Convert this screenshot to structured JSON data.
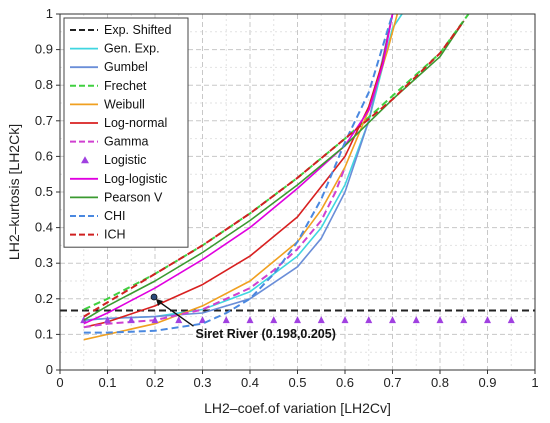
{
  "chart_data": {
    "type": "line",
    "title": "",
    "xlabel": "LH2–coef.of variation [LH2Cv]",
    "ylabel": "LH2–kurtosis [LH2Ck]",
    "xlim": [
      0,
      1
    ],
    "ylim": [
      0,
      1
    ],
    "xticks": [
      "0",
      "0.1",
      "0.2",
      "0.3",
      "0.4",
      "0.5",
      "0.6",
      "0.7",
      "0.8",
      "0.9",
      "1"
    ],
    "yticks": [
      "0",
      "0.1",
      "0.2",
      "0.3",
      "0.4",
      "0.5",
      "0.6",
      "0.7",
      "0.8",
      "0.9",
      "1"
    ],
    "grid": true,
    "legend_position": "top-left",
    "series": [
      {
        "name": "Exp. Shifted",
        "color": "#222222",
        "dash": "dashed",
        "style": "line",
        "points": [
          [
            0,
            0.167
          ],
          [
            1,
            0.167
          ]
        ]
      },
      {
        "name": "Gen. Exp.",
        "color": "#3fd6e0",
        "dash": "solid",
        "style": "line",
        "points": [
          [
            0.05,
            0.14
          ],
          [
            0.1,
            0.145
          ],
          [
            0.2,
            0.15
          ],
          [
            0.3,
            0.17
          ],
          [
            0.4,
            0.22
          ],
          [
            0.5,
            0.32
          ],
          [
            0.55,
            0.4
          ],
          [
            0.6,
            0.52
          ],
          [
            0.65,
            0.7
          ],
          [
            0.7,
            0.96
          ],
          [
            0.72,
            1.0
          ]
        ]
      },
      {
        "name": "Gumbel",
        "color": "#6a8ed8",
        "dash": "solid",
        "style": "line",
        "points": [
          [
            0.05,
            0.14
          ],
          [
            0.1,
            0.145
          ],
          [
            0.2,
            0.15
          ],
          [
            0.3,
            0.16
          ],
          [
            0.4,
            0.2
          ],
          [
            0.5,
            0.29
          ],
          [
            0.55,
            0.37
          ],
          [
            0.6,
            0.5
          ],
          [
            0.65,
            0.7
          ],
          [
            0.7,
            1.0
          ]
        ]
      },
      {
        "name": "Frechet",
        "color": "#40d040",
        "dash": "dashed",
        "style": "line",
        "points": [
          [
            0.05,
            0.17
          ],
          [
            0.1,
            0.2
          ],
          [
            0.2,
            0.27
          ],
          [
            0.3,
            0.35
          ],
          [
            0.4,
            0.44
          ],
          [
            0.5,
            0.54
          ],
          [
            0.6,
            0.65
          ],
          [
            0.7,
            0.77
          ],
          [
            0.8,
            0.89
          ],
          [
            0.86,
            1.0
          ]
        ]
      },
      {
        "name": "Weibull",
        "color": "#f0a020",
        "dash": "solid",
        "style": "line",
        "points": [
          [
            0.05,
            0.085
          ],
          [
            0.1,
            0.1
          ],
          [
            0.2,
            0.13
          ],
          [
            0.3,
            0.18
          ],
          [
            0.4,
            0.25
          ],
          [
            0.5,
            0.36
          ],
          [
            0.55,
            0.45
          ],
          [
            0.6,
            0.57
          ],
          [
            0.65,
            0.73
          ],
          [
            0.69,
            0.9
          ],
          [
            0.71,
            1.0
          ]
        ]
      },
      {
        "name": "Log-normal",
        "color": "#d82020",
        "dash": "solid",
        "style": "line",
        "points": [
          [
            0.05,
            0.12
          ],
          [
            0.1,
            0.135
          ],
          [
            0.2,
            0.18
          ],
          [
            0.3,
            0.24
          ],
          [
            0.4,
            0.32
          ],
          [
            0.5,
            0.43
          ],
          [
            0.6,
            0.6
          ],
          [
            0.65,
            0.74
          ],
          [
            0.68,
            0.87
          ],
          [
            0.7,
            1.0
          ]
        ]
      },
      {
        "name": "Gamma",
        "color": "#d040d0",
        "dash": "dashed",
        "style": "line",
        "points": [
          [
            0.05,
            0.12
          ],
          [
            0.1,
            0.13
          ],
          [
            0.2,
            0.14
          ],
          [
            0.3,
            0.17
          ],
          [
            0.4,
            0.23
          ],
          [
            0.45,
            0.28
          ],
          [
            0.5,
            0.34
          ],
          [
            0.55,
            0.42
          ],
          [
            0.58,
            0.5
          ],
          [
            0.6,
            0.57
          ]
        ]
      },
      {
        "name": "Logistic",
        "color": "#a040e0",
        "dash": "none",
        "style": "markers",
        "points": [
          [
            0.05,
            0.14
          ],
          [
            0.1,
            0.14
          ],
          [
            0.15,
            0.14
          ],
          [
            0.2,
            0.14
          ],
          [
            0.25,
            0.14
          ],
          [
            0.3,
            0.14
          ],
          [
            0.35,
            0.14
          ],
          [
            0.4,
            0.14
          ],
          [
            0.45,
            0.14
          ],
          [
            0.5,
            0.14
          ],
          [
            0.55,
            0.14
          ],
          [
            0.6,
            0.14
          ],
          [
            0.65,
            0.14
          ],
          [
            0.7,
            0.14
          ],
          [
            0.75,
            0.14
          ],
          [
            0.8,
            0.14
          ],
          [
            0.85,
            0.14
          ],
          [
            0.9,
            0.14
          ],
          [
            0.95,
            0.14
          ]
        ]
      },
      {
        "name": "Log-logistic",
        "color": "#e000e0",
        "dash": "solid",
        "style": "line",
        "points": [
          [
            0.05,
            0.13
          ],
          [
            0.1,
            0.16
          ],
          [
            0.2,
            0.23
          ],
          [
            0.3,
            0.31
          ],
          [
            0.4,
            0.4
          ],
          [
            0.5,
            0.51
          ],
          [
            0.6,
            0.63
          ],
          [
            0.65,
            0.73
          ],
          [
            0.68,
            0.86
          ],
          [
            0.7,
            1.0
          ]
        ]
      },
      {
        "name": "Pearson V",
        "color": "#3a9a30",
        "dash": "solid",
        "style": "line",
        "points": [
          [
            0.05,
            0.14
          ],
          [
            0.1,
            0.18
          ],
          [
            0.2,
            0.25
          ],
          [
            0.3,
            0.33
          ],
          [
            0.4,
            0.42
          ],
          [
            0.5,
            0.52
          ],
          [
            0.6,
            0.63
          ],
          [
            0.7,
            0.76
          ],
          [
            0.8,
            0.88
          ],
          [
            0.85,
            0.98
          ]
        ]
      },
      {
        "name": "CHI",
        "color": "#4a88e0",
        "dash": "dashed",
        "style": "line",
        "points": [
          [
            0.05,
            0.105
          ],
          [
            0.1,
            0.105
          ],
          [
            0.2,
            0.11
          ],
          [
            0.3,
            0.13
          ],
          [
            0.35,
            0.16
          ],
          [
            0.4,
            0.2
          ],
          [
            0.45,
            0.27
          ],
          [
            0.5,
            0.36
          ],
          [
            0.55,
            0.48
          ],
          [
            0.6,
            0.64
          ],
          [
            0.65,
            0.78
          ],
          [
            0.7,
            1.0
          ]
        ]
      },
      {
        "name": "ICH",
        "color": "#d02020",
        "dash": "dashed",
        "style": "line",
        "points": [
          [
            0.05,
            0.15
          ],
          [
            0.1,
            0.19
          ],
          [
            0.2,
            0.27
          ],
          [
            0.3,
            0.35
          ],
          [
            0.4,
            0.44
          ],
          [
            0.5,
            0.54
          ],
          [
            0.6,
            0.65
          ],
          [
            0.7,
            0.76
          ],
          [
            0.8,
            0.89
          ],
          [
            0.85,
            0.98
          ]
        ]
      }
    ],
    "annotation": {
      "text": "Siret River (0.198,0.205)",
      "x": 0.198,
      "y": 0.205,
      "label_x": 0.26,
      "label_y": 0.095
    }
  }
}
